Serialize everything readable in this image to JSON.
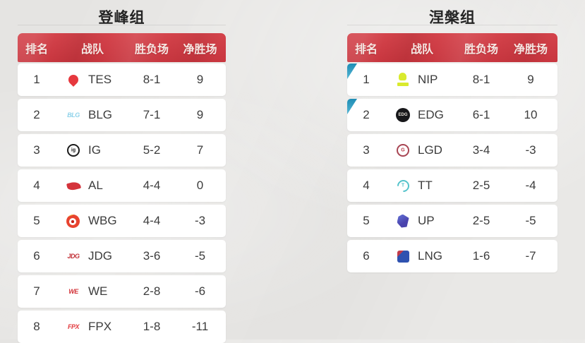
{
  "colors": {
    "page_bg": "#e9e8e6",
    "header_red": "#cb3941",
    "header_text": "#f6e8e4",
    "row_bg": "#ffffff",
    "row_text": "#3c3c3c",
    "promotion_cyan": "#2d9dc2"
  },
  "groups": [
    {
      "title": "登峰组",
      "columns": [
        "排名",
        "战队",
        "胜负场",
        "净胜场"
      ],
      "rows": [
        {
          "rank": "1",
          "team": "TES",
          "record": "8-1",
          "net": "9",
          "promoted": false,
          "logo": {
            "kind": "pin",
            "c": "#e6383e"
          }
        },
        {
          "rank": "2",
          "team": "BLG",
          "record": "7-1",
          "net": "9",
          "promoted": false,
          "logo": {
            "kind": "text",
            "c": "#8ed2ea",
            "label": "BLG"
          }
        },
        {
          "rank": "3",
          "team": "IG",
          "record": "5-2",
          "net": "7",
          "promoted": false,
          "logo": {
            "kind": "ring",
            "c": "#1c1c1c",
            "label": "ig",
            "lc": "#1c1c1c"
          }
        },
        {
          "rank": "4",
          "team": "AL",
          "record": "4-4",
          "net": "0",
          "promoted": false,
          "logo": {
            "kind": "swoosh",
            "c": "#d4333b"
          }
        },
        {
          "rank": "5",
          "team": "WBG",
          "record": "4-4",
          "net": "-3",
          "promoted": false,
          "logo": {
            "kind": "eye",
            "c": "#e8432f"
          }
        },
        {
          "rank": "6",
          "team": "JDG",
          "record": "3-6",
          "net": "-5",
          "promoted": false,
          "logo": {
            "kind": "text",
            "c": "#c23036",
            "label": "JDG"
          }
        },
        {
          "rank": "7",
          "team": "WE",
          "record": "2-8",
          "net": "-6",
          "promoted": false,
          "logo": {
            "kind": "text",
            "c": "#d3343a",
            "label": "WE"
          }
        },
        {
          "rank": "8",
          "team": "FPX",
          "record": "1-8",
          "net": "-11",
          "promoted": false,
          "logo": {
            "kind": "text",
            "c": "#e23a3e",
            "label": "FPX"
          }
        }
      ]
    },
    {
      "title": "涅槃组",
      "columns": [
        "排名",
        "战队",
        "胜负场",
        "净胜场"
      ],
      "rows": [
        {
          "rank": "1",
          "team": "NIP",
          "record": "8-1",
          "net": "9",
          "promoted": true,
          "logo": {
            "kind": "badge",
            "c": "#d9ea2e"
          }
        },
        {
          "rank": "2",
          "team": "EDG",
          "record": "6-1",
          "net": "10",
          "promoted": true,
          "logo": {
            "kind": "disc",
            "c": "#17171a",
            "label": "EDG",
            "lc": "#e5e0d8"
          }
        },
        {
          "rank": "3",
          "team": "LGD",
          "record": "3-4",
          "net": "-3",
          "promoted": false,
          "logo": {
            "kind": "ring",
            "c": "#a84553",
            "label": "G",
            "lc": "#bb3b49"
          }
        },
        {
          "rank": "4",
          "team": "TT",
          "record": "2-5",
          "net": "-4",
          "promoted": false,
          "logo": {
            "kind": "ringopen",
            "c": "#54c3cb",
            "label": "T",
            "lc": "#54c3cb"
          }
        },
        {
          "rank": "5",
          "team": "UP",
          "record": "2-5",
          "net": "-5",
          "promoted": false,
          "logo": {
            "kind": "shield",
            "c": "#4a43ad"
          }
        },
        {
          "rank": "6",
          "team": "LNG",
          "record": "1-6",
          "net": "-7",
          "promoted": false,
          "logo": {
            "kind": "square",
            "c": "#2f52b0"
          }
        }
      ]
    }
  ]
}
